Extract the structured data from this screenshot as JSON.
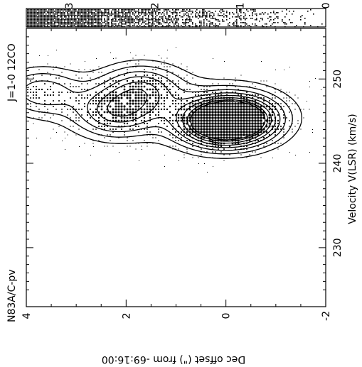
{
  "chart_data": {
    "type": "heatmap",
    "title_tags": {
      "source": "N83A/C-pv",
      "line": "J=1-0 12CO"
    },
    "xlabel": "Velocity V(LSR) (km/s)",
    "ylabel": "Dec offset (\") from -69:16:00",
    "x_ticks": [
      "230",
      "240",
      "250"
    ],
    "y_ticks": [
      "4",
      "2",
      "0",
      "-2"
    ],
    "xlim": [
      223,
      256
    ],
    "ylim": [
      4,
      -2
    ],
    "colorbar": {
      "ticks": [
        "3",
        "2",
        "1",
        "0"
      ],
      "range": [
        3.5,
        0
      ]
    },
    "peaks": [
      {
        "x": 245.2,
        "y": -0.3,
        "value": 3.3
      },
      {
        "x": 244.8,
        "y": 0.2,
        "value": 3.0
      },
      {
        "x": 246.0,
        "y": 2.2,
        "value": 1.8
      },
      {
        "x": 249.0,
        "y": 1.7,
        "value": 1.6
      },
      {
        "x": 248.5,
        "y": 3.7,
        "value": 1.4
      }
    ],
    "contour_levels": [
      0.45,
      0.8,
      1.2,
      1.6,
      2.0,
      2.4,
      2.8,
      3.1
    ],
    "color_scale": {
      "low": "#ffffff",
      "high": "#000000"
    }
  }
}
